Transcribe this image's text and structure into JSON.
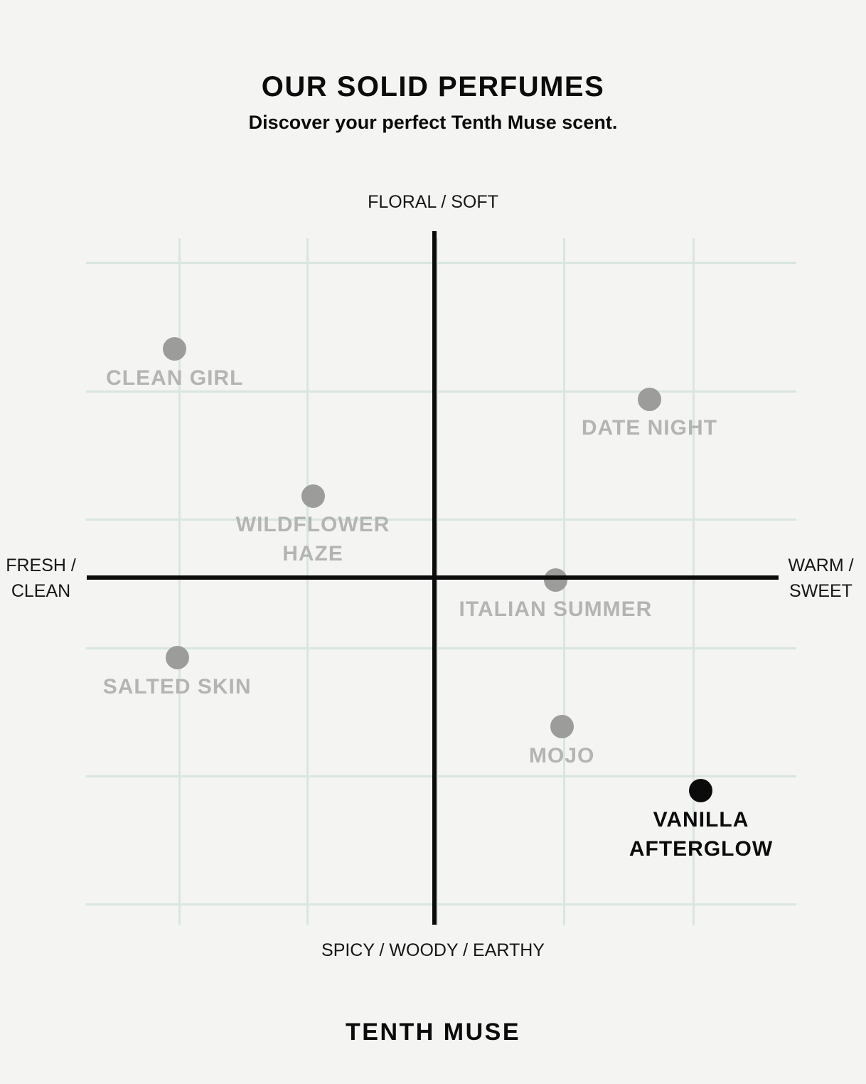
{
  "page": {
    "title": "OUR SOLID PERFUMES",
    "subtitle": "Discover your perfect Tenth Muse scent.",
    "brand": "TENTH MUSE"
  },
  "chart_data": {
    "type": "scatter",
    "title": "OUR SOLID PERFUMES",
    "subtitle": "Discover your perfect Tenth Muse scent.",
    "axes": {
      "top": "FLORAL / SOFT",
      "bottom": "SPICY / WOODY / EARTHY",
      "left": [
        "FRESH /",
        "CLEAN"
      ],
      "right": [
        "WARM /",
        "SWEET"
      ]
    },
    "xlim": [
      -1,
      1
    ],
    "ylim": [
      -1,
      1
    ],
    "grid": true,
    "legend": "none",
    "points": [
      {
        "name": "CLEAN GIRL",
        "label_lines": [
          "CLEAN GIRL"
        ],
        "x": -0.75,
        "y": 0.66,
        "highlighted": false
      },
      {
        "name": "DATE NIGHT",
        "label_lines": [
          "DATE NIGHT"
        ],
        "x": 0.621,
        "y": 0.515,
        "highlighted": false
      },
      {
        "name": "WILDFLOWER HAZE",
        "label_lines": [
          "WILDFLOWER",
          "HAZE"
        ],
        "x": -0.351,
        "y": 0.236,
        "highlighted": false
      },
      {
        "name": "ITALIAN SUMMER",
        "label_lines": [
          "ITALIAN SUMMER"
        ],
        "x": 0.35,
        "y": -0.008,
        "highlighted": false
      },
      {
        "name": "SALTED SKIN",
        "label_lines": [
          "SALTED SKIN"
        ],
        "x": -0.743,
        "y": -0.232,
        "highlighted": false
      },
      {
        "name": "MOJO",
        "label_lines": [
          "MOJO"
        ],
        "x": 0.368,
        "y": -0.431,
        "highlighted": false
      },
      {
        "name": "VANILLA AFTERGLOW",
        "label_lines": [
          "VANILLA",
          "AFTERGLOW"
        ],
        "x": 0.77,
        "y": -0.615,
        "highlighted": true
      }
    ],
    "colors": {
      "background": "#f4f4f2",
      "grid": "#d9e6e0",
      "dot": "#9c9d9b",
      "dot_label": "#b4b5b3",
      "highlight": "#0b0b0b",
      "text": "#0b0b0b"
    }
  }
}
